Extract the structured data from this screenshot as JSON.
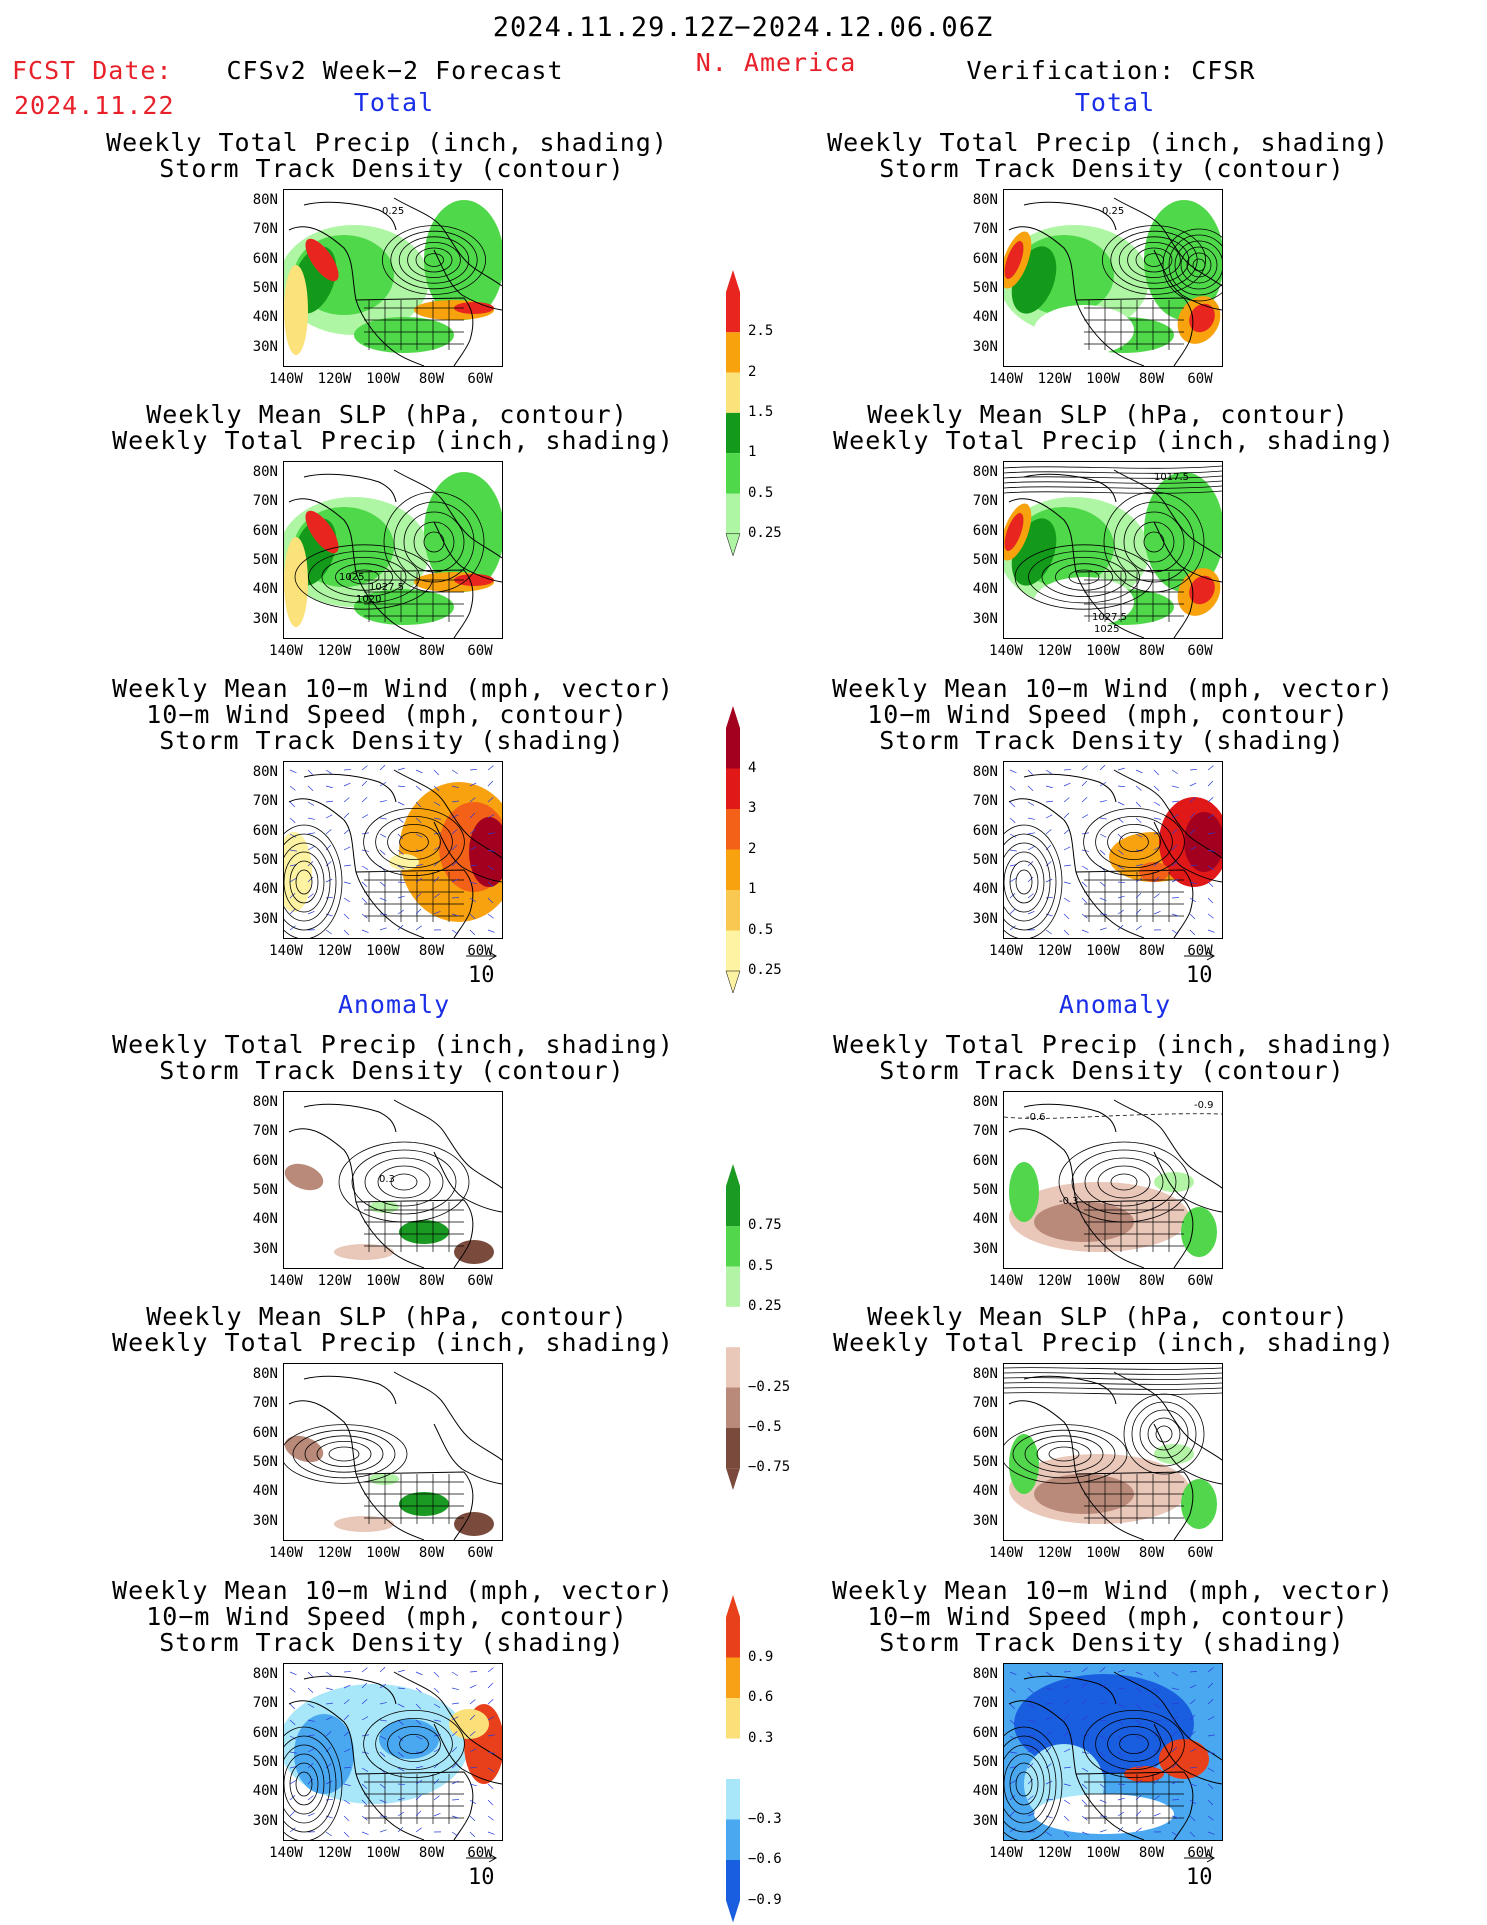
{
  "header": {
    "date_range": "2024.11.29.12Z−2024.12.06.06Z",
    "fcst_label": "FCST Date:",
    "fcst_date": "2024.11.22",
    "left_title": "CFSv2 Week−2 Forecast",
    "region": "N. America",
    "right_title": "Verification: CFSR"
  },
  "sections": {
    "total": "Total",
    "anomaly": "Anomaly"
  },
  "panel_titles": {
    "precip_storm": [
      "Weekly Total Precip (inch, shading)",
      "Storm Track Density (contour)"
    ],
    "slp_precip": [
      "Weekly Mean SLP (hPa, contour)",
      "Weekly Total Precip (inch, shading)"
    ],
    "wind_storm": [
      "Weekly Mean 10−m Wind (mph, vector)",
      "10−m Wind Speed (mph, contour)",
      "Storm Track Density (shading)"
    ]
  },
  "axes": {
    "lat_labels": [
      "80N",
      "70N",
      "60N",
      "50N",
      "40N",
      "30N"
    ],
    "lon_labels": [
      "140W",
      "120W",
      "100W",
      "80W",
      "60W"
    ]
  },
  "vector_ref": "10",
  "colorbars": {
    "total_precip": {
      "labels": [
        "2.5",
        "2",
        "1.5",
        "1",
        "0.5",
        "0.25"
      ],
      "colors": [
        "#e8251f",
        "#f8a30e",
        "#fbe27b",
        "#139a1a",
        "#4fd84a",
        "#aef5a4"
      ]
    },
    "total_storm": {
      "labels": [
        "4",
        "3",
        "2",
        "1",
        "0.5",
        "0.25"
      ],
      "colors": [
        "#a3001f",
        "#e01818",
        "#f36018",
        "#f8a20f",
        "#f9c850",
        "#fdf3a2"
      ]
    },
    "anom_precip": {
      "labels": [
        "0.75",
        "0.5",
        "0.25",
        "−0.25",
        "−0.5",
        "−0.75"
      ],
      "colors": [
        "#1a9a22",
        "#52d64c",
        "#b2f3a5",
        "#ffffff",
        "#e9c7b9",
        "#b98a7a",
        "#7a4a3c"
      ]
    },
    "anom_storm": {
      "labels": [
        "0.9",
        "0.6",
        "0.3",
        "−0.3",
        "−0.6",
        "−0.9"
      ],
      "colors": [
        "#e8401a",
        "#f8a016",
        "#fbe07a",
        "#ffffff",
        "#a8e6fa",
        "#4aa8f0",
        "#1a5ee0"
      ]
    },
    "colors_note": ""
  },
  "contour_labels": {
    "f_precip_storm_total": "0.25",
    "v_precip_storm_total": "0.25",
    "f_slp_total": [
      "1025",
      "1027.5",
      "1020"
    ],
    "v_slp_total": [
      "1017.5",
      "1027.5",
      "1025"
    ],
    "f_precip_storm_anom": "0.3",
    "v_precip_storm_anom": [
      "-0.6",
      "-0.9",
      "-0.3"
    ]
  }
}
